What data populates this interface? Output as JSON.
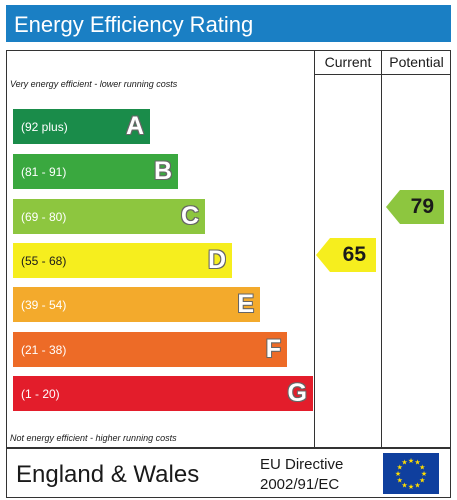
{
  "title": "Energy Efficiency Rating",
  "columns": {
    "current": "Current",
    "potential": "Potential"
  },
  "notes": {
    "top": "Very energy efficient - lower running costs",
    "bottom": "Not energy efficient - higher running costs"
  },
  "bands": [
    {
      "range": "(92 plus)",
      "letter": "A",
      "color": "#1a8c4a"
    },
    {
      "range": "(81 - 91)",
      "letter": "B",
      "color": "#3aa83f"
    },
    {
      "range": "(69 - 80)",
      "letter": "C",
      "color": "#8dc63f"
    },
    {
      "range": "(55 - 68)",
      "letter": "D",
      "color": "#f6ee1e"
    },
    {
      "range": "(39 - 54)",
      "letter": "E",
      "color": "#f3aa2c"
    },
    {
      "range": "(21 - 38)",
      "letter": "F",
      "color": "#ed6b27"
    },
    {
      "range": "(1 - 20)",
      "letter": "G",
      "color": "#e31d2b"
    }
  ],
  "ratings": {
    "current": {
      "value": "65",
      "band": "D",
      "color": "#f6ee1e"
    },
    "potential": {
      "value": "79",
      "band": "C",
      "color": "#8dc63f"
    }
  },
  "footer": {
    "region": "England & Wales",
    "directive_line1": "EU Directive",
    "directive_line2": "2002/91/EC",
    "flag_icon": "eu-flag-icon",
    "flag_color": "#0f3f9e",
    "star_color": "#ffdd00"
  }
}
